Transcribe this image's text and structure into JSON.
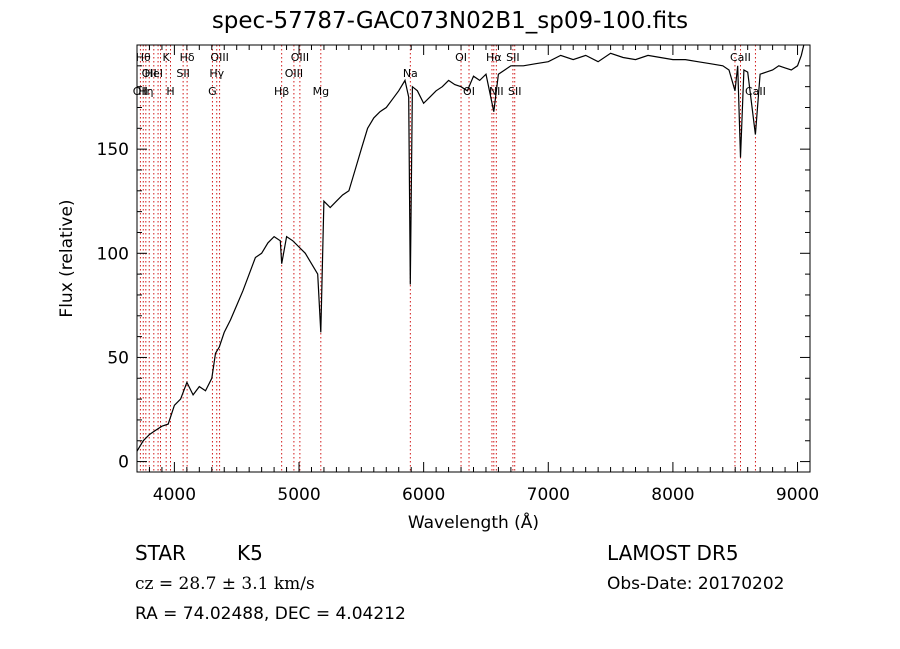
{
  "chart_data": {
    "type": "line",
    "title": "spec-57787-GAC073N02B1_sp09-100.fits",
    "xlabel": "Wavelength (Å)",
    "ylabel": "Flux (relative)",
    "xlim": [
      3700,
      9100
    ],
    "ylim": [
      -5,
      200
    ],
    "xticks": [
      4000,
      5000,
      6000,
      7000,
      8000,
      9000
    ],
    "yticks": [
      0,
      50,
      100,
      150
    ],
    "grid": false,
    "line_color": "#000000",
    "marker_color": "#cc0000",
    "series": [
      {
        "x": [
          3700,
          3750,
          3800,
          3850,
          3900,
          3950,
          4000,
          4050,
          4100,
          4150,
          4200,
          4250,
          4300,
          4330,
          4360,
          4400,
          4450,
          4500,
          4550,
          4600,
          4650,
          4700,
          4750,
          4800,
          4850,
          4861,
          4900,
          4950,
          5000,
          5050,
          5100,
          5150,
          5175,
          5200,
          5250,
          5300,
          5350,
          5400,
          5450,
          5500,
          5550,
          5600,
          5650,
          5700,
          5750,
          5800,
          5850,
          5880,
          5893,
          5910,
          5950,
          6000,
          6050,
          6100,
          6150,
          6200,
          6250,
          6300,
          6350,
          6400,
          6450,
          6500,
          6563,
          6600,
          6650,
          6700,
          6750,
          6800,
          6900,
          7000,
          7100,
          7200,
          7300,
          7400,
          7500,
          7600,
          7700,
          7800,
          7900,
          8000,
          8100,
          8200,
          8300,
          8400,
          8450,
          8498,
          8520,
          8542,
          8570,
          8600,
          8662,
          8700,
          8750,
          8800,
          8850,
          8900,
          8950,
          9000,
          9030,
          9050
        ],
        "y": [
          5,
          10,
          13,
          15,
          17,
          18,
          27,
          30,
          38,
          32,
          36,
          34,
          40,
          52,
          55,
          62,
          68,
          75,
          82,
          90,
          98,
          100,
          105,
          108,
          106,
          95,
          108,
          106,
          103,
          100,
          95,
          90,
          62,
          125,
          122,
          125,
          128,
          130,
          140,
          150,
          160,
          165,
          168,
          170,
          174,
          178,
          183,
          175,
          85,
          180,
          178,
          172,
          175,
          178,
          180,
          183,
          181,
          180,
          178,
          185,
          183,
          186,
          168,
          186,
          188,
          190,
          190,
          190,
          191,
          192,
          195,
          193,
          195,
          192,
          196,
          194,
          193,
          195,
          194,
          193,
          193,
          192,
          191,
          190,
          188,
          178,
          190,
          146,
          188,
          187,
          157,
          186,
          187,
          188,
          190,
          189,
          188,
          190,
          195,
          200
        ]
      }
    ],
    "lines": [
      {
        "x": 3727,
        "label": "OII",
        "row": 3
      },
      {
        "x": 3750,
        "label": "Hθ",
        "row": 1
      },
      {
        "x": 3771,
        "label": "Hη",
        "row": 3
      },
      {
        "x": 3798,
        "label": "OII",
        "row": 2
      },
      {
        "x": 3835,
        "label": "HeI",
        "row": 2
      },
      {
        "x": 3869,
        "label": "",
        "row": 0
      },
      {
        "x": 3889,
        "label": "",
        "row": 0
      },
      {
        "x": 3934,
        "label": "K",
        "row": 1
      },
      {
        "x": 3969,
        "label": "H",
        "row": 3
      },
      {
        "x": 4070,
        "label": "SII",
        "row": 2
      },
      {
        "x": 4102,
        "label": "Hδ",
        "row": 1
      },
      {
        "x": 4305,
        "label": "G",
        "row": 3
      },
      {
        "x": 4340,
        "label": "Hγ",
        "row": 2
      },
      {
        "x": 4363,
        "label": "OIII",
        "row": 1
      },
      {
        "x": 4861,
        "label": "Hβ",
        "row": 3
      },
      {
        "x": 4959,
        "label": "OIII",
        "row": 2
      },
      {
        "x": 5007,
        "label": "OIII",
        "row": 1
      },
      {
        "x": 5175,
        "label": "Mg",
        "row": 3
      },
      {
        "x": 5893,
        "label": "Na",
        "row": 2
      },
      {
        "x": 6300,
        "label": "OI",
        "row": 1
      },
      {
        "x": 6364,
        "label": "OI",
        "row": 3
      },
      {
        "x": 6548,
        "label": "",
        "row": 0
      },
      {
        "x": 6563,
        "label": "Hα",
        "row": 1
      },
      {
        "x": 6583,
        "label": "NII",
        "row": 3
      },
      {
        "x": 6716,
        "label": "SII",
        "row": 1
      },
      {
        "x": 6731,
        "label": "SII",
        "row": 3
      },
      {
        "x": 8498,
        "label": "",
        "row": 0
      },
      {
        "x": 8542,
        "label": "CaII",
        "row": 1
      },
      {
        "x": 8662,
        "label": "CaII",
        "row": 3
      }
    ]
  },
  "info": {
    "object_class": "STAR",
    "subclass": "K5",
    "release": "LAMOST DR5",
    "cz": "cz = 28.7 ± 3.1 km/s",
    "obs_date": "Obs-Date: 20170202",
    "coords": "RA =  74.02488, DEC =   4.04212"
  }
}
